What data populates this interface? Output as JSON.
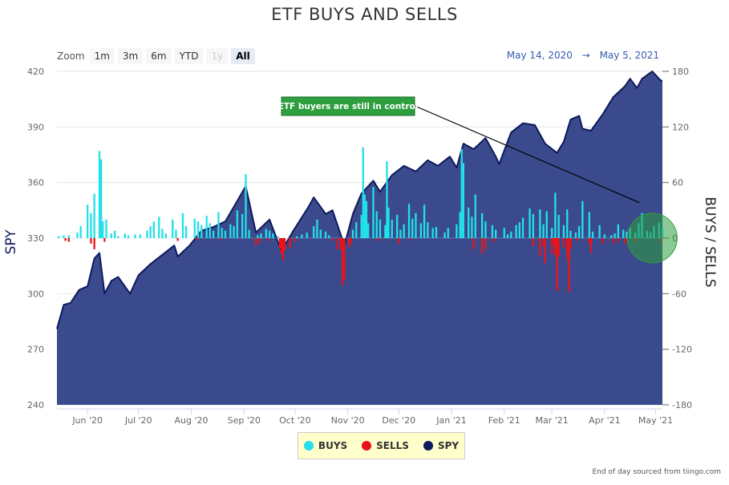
{
  "page_title": "ETF BUYS AND SELLS",
  "range_selector": {
    "label": "Zoom",
    "buttons": [
      "1m",
      "3m",
      "6m",
      "YTD",
      "1y",
      "All"
    ],
    "active": "All",
    "disabled": [
      "1y"
    ]
  },
  "date_range": {
    "from": "May 14, 2020",
    "arrow": "→",
    "to": "May 5, 2021"
  },
  "credit": "End of day sourced from tiingo.com",
  "colors": {
    "buys": "#22e0ea",
    "sells": "#e8141a",
    "spy_fill": "#3a4a8c",
    "spy_line": "#0e1a5c",
    "annotation": "#2e9e3e"
  },
  "legend": [
    {
      "label": "BUYS",
      "color": "#22e0ea"
    },
    {
      "label": "SELLS",
      "color": "#e8141a"
    },
    {
      "label": "SPY",
      "color": "#0e1a5c"
    }
  ],
  "annotation": {
    "text": "ETF buyers are still in control"
  },
  "chart_data": {
    "type": "area",
    "title": "ETF BUYS AND SELLS",
    "x_range": [
      "2020-05-14",
      "2021-05-05"
    ],
    "x_tick_labels": [
      {
        "date": "2020-06-01",
        "label": "Jun '20"
      },
      {
        "date": "2020-07-01",
        "label": "Jul '20"
      },
      {
        "date": "2020-08-01",
        "label": "Aug '20"
      },
      {
        "date": "2020-09-01",
        "label": "Sep '20"
      },
      {
        "date": "2020-10-01",
        "label": "Oct '20"
      },
      {
        "date": "2020-11-01",
        "label": "Nov '20"
      },
      {
        "date": "2020-12-01",
        "label": "Dec '20"
      },
      {
        "date": "2021-01-01",
        "label": "Jan '21"
      },
      {
        "date": "2021-02-01",
        "label": "Feb '21"
      },
      {
        "date": "2021-03-01",
        "label": "Mar '21"
      },
      {
        "date": "2021-04-01",
        "label": "Apr '21"
      },
      {
        "date": "2021-05-01",
        "label": "May '21"
      }
    ],
    "y_left": {
      "label": "SPY",
      "range": [
        240,
        420
      ],
      "ticks": [
        240,
        270,
        300,
        330,
        360,
        390,
        420
      ]
    },
    "y_right": {
      "label": "BUYS / SELLS",
      "range": [
        -180,
        180
      ],
      "ticks": [
        -180,
        -120,
        -60,
        0,
        60,
        120,
        180
      ]
    },
    "grid": true,
    "legend_position": "bottom-center",
    "series": [
      {
        "name": "SPY",
        "axis": "left",
        "points": [
          [
            "2020-05-14",
            281
          ],
          [
            "2020-05-18",
            294
          ],
          [
            "2020-05-22",
            295
          ],
          [
            "2020-05-27",
            302
          ],
          [
            "2020-06-01",
            304
          ],
          [
            "2020-06-05",
            319
          ],
          [
            "2020-06-08",
            322
          ],
          [
            "2020-06-11",
            300
          ],
          [
            "2020-06-15",
            307
          ],
          [
            "2020-06-19",
            309
          ],
          [
            "2020-06-26",
            300
          ],
          [
            "2020-07-01",
            310
          ],
          [
            "2020-07-08",
            316
          ],
          [
            "2020-07-15",
            321
          ],
          [
            "2020-07-22",
            326
          ],
          [
            "2020-07-24",
            320
          ],
          [
            "2020-07-31",
            326
          ],
          [
            "2020-08-07",
            334
          ],
          [
            "2020-08-14",
            336
          ],
          [
            "2020-08-21",
            339
          ],
          [
            "2020-08-28",
            350
          ],
          [
            "2020-09-02",
            358
          ],
          [
            "2020-09-08",
            333
          ],
          [
            "2020-09-16",
            340
          ],
          [
            "2020-09-23",
            323
          ],
          [
            "2020-09-30",
            334
          ],
          [
            "2020-10-09",
            347
          ],
          [
            "2020-10-12",
            352
          ],
          [
            "2020-10-19",
            343
          ],
          [
            "2020-10-23",
            345
          ],
          [
            "2020-10-30",
            326
          ],
          [
            "2020-11-04",
            343
          ],
          [
            "2020-11-09",
            354
          ],
          [
            "2020-11-16",
            361
          ],
          [
            "2020-11-20",
            355
          ],
          [
            "2020-11-27",
            364
          ],
          [
            "2020-12-04",
            369
          ],
          [
            "2020-12-11",
            366
          ],
          [
            "2020-12-18",
            372
          ],
          [
            "2020-12-24",
            369
          ],
          [
            "2020-12-31",
            374
          ],
          [
            "2021-01-04",
            368
          ],
          [
            "2021-01-08",
            381
          ],
          [
            "2021-01-14",
            378
          ],
          [
            "2021-01-21",
            384
          ],
          [
            "2021-01-27",
            374
          ],
          [
            "2021-01-29",
            370
          ],
          [
            "2021-02-05",
            387
          ],
          [
            "2021-02-12",
            392
          ],
          [
            "2021-02-19",
            391
          ],
          [
            "2021-02-25",
            381
          ],
          [
            "2021-03-04",
            376
          ],
          [
            "2021-03-08",
            382
          ],
          [
            "2021-03-12",
            394
          ],
          [
            "2021-03-17",
            396
          ],
          [
            "2021-03-19",
            389
          ],
          [
            "2021-03-24",
            388
          ],
          [
            "2021-03-31",
            397
          ],
          [
            "2021-04-06",
            406
          ],
          [
            "2021-04-13",
            412
          ],
          [
            "2021-04-16",
            416
          ],
          [
            "2021-04-20",
            411
          ],
          [
            "2021-04-23",
            416
          ],
          [
            "2021-04-29",
            420
          ],
          [
            "2021-05-04",
            415
          ],
          [
            "2021-05-05",
            415
          ]
        ]
      },
      {
        "name": "BUYS",
        "axis": "right",
        "points": [
          [
            "2020-05-15",
            2
          ],
          [
            "2020-05-18",
            3
          ],
          [
            "2020-05-21",
            3
          ],
          [
            "2020-05-26",
            6
          ],
          [
            "2020-05-28",
            13
          ],
          [
            "2020-06-01",
            36
          ],
          [
            "2020-06-03",
            27
          ],
          [
            "2020-06-05",
            48
          ],
          [
            "2020-06-08",
            94
          ],
          [
            "2020-06-09",
            85
          ],
          [
            "2020-06-10",
            18
          ],
          [
            "2020-06-12",
            20
          ],
          [
            "2020-06-15",
            5
          ],
          [
            "2020-06-17",
            8
          ],
          [
            "2020-06-19",
            2
          ],
          [
            "2020-06-23",
            5
          ],
          [
            "2020-06-25",
            3
          ],
          [
            "2020-06-29",
            4
          ],
          [
            "2020-07-02",
            4
          ],
          [
            "2020-07-06",
            8
          ],
          [
            "2020-07-08",
            13
          ],
          [
            "2020-07-10",
            18
          ],
          [
            "2020-07-13",
            23
          ],
          [
            "2020-07-15",
            10
          ],
          [
            "2020-07-17",
            5
          ],
          [
            "2020-07-21",
            20
          ],
          [
            "2020-07-23",
            9
          ],
          [
            "2020-07-27",
            27
          ],
          [
            "2020-07-29",
            13
          ],
          [
            "2020-08-03",
            21
          ],
          [
            "2020-08-05",
            18
          ],
          [
            "2020-08-07",
            14
          ],
          [
            "2020-08-10",
            24
          ],
          [
            "2020-08-12",
            16
          ],
          [
            "2020-08-14",
            8
          ],
          [
            "2020-08-17",
            28
          ],
          [
            "2020-08-19",
            11
          ],
          [
            "2020-08-21",
            8
          ],
          [
            "2020-08-24",
            15
          ],
          [
            "2020-08-26",
            13
          ],
          [
            "2020-08-28",
            30
          ],
          [
            "2020-08-31",
            26
          ],
          [
            "2020-09-02",
            69
          ],
          [
            "2020-09-04",
            9
          ],
          [
            "2020-09-09",
            3
          ],
          [
            "2020-09-11",
            5
          ],
          [
            "2020-09-14",
            10
          ],
          [
            "2020-09-16",
            8
          ],
          [
            "2020-09-18",
            5
          ],
          [
            "2020-09-21",
            2
          ],
          [
            "2020-10-02",
            2
          ],
          [
            "2020-10-05",
            4
          ],
          [
            "2020-10-08",
            6
          ],
          [
            "2020-10-12",
            13
          ],
          [
            "2020-10-14",
            20
          ],
          [
            "2020-10-16",
            9
          ],
          [
            "2020-10-19",
            7
          ],
          [
            "2020-10-21",
            3
          ],
          [
            "2020-11-04",
            9
          ],
          [
            "2020-11-06",
            17
          ],
          [
            "2020-11-09",
            25
          ],
          [
            "2020-11-10",
            98
          ],
          [
            "2020-11-11",
            47
          ],
          [
            "2020-11-12",
            40
          ],
          [
            "2020-11-13",
            16
          ],
          [
            "2020-11-16",
            55
          ],
          [
            "2020-11-18",
            29
          ],
          [
            "2020-11-20",
            20
          ],
          [
            "2020-11-23",
            14
          ],
          [
            "2020-11-24",
            83
          ],
          [
            "2020-11-25",
            33
          ],
          [
            "2020-11-27",
            20
          ],
          [
            "2020-11-30",
            25
          ],
          [
            "2020-12-02",
            9
          ],
          [
            "2020-12-04",
            15
          ],
          [
            "2020-12-07",
            37
          ],
          [
            "2020-12-09",
            21
          ],
          [
            "2020-12-11",
            27
          ],
          [
            "2020-12-14",
            16
          ],
          [
            "2020-12-16",
            36
          ],
          [
            "2020-12-18",
            17
          ],
          [
            "2020-12-21",
            11
          ],
          [
            "2020-12-23",
            12
          ],
          [
            "2020-12-28",
            6
          ],
          [
            "2020-12-30",
            11
          ],
          [
            "2021-01-04",
            15
          ],
          [
            "2021-01-06",
            28
          ],
          [
            "2021-01-07",
            96
          ],
          [
            "2021-01-08",
            81
          ],
          [
            "2021-01-11",
            33
          ],
          [
            "2021-01-13",
            23
          ],
          [
            "2021-01-15",
            47
          ],
          [
            "2021-01-19",
            27
          ],
          [
            "2021-01-21",
            18
          ],
          [
            "2021-01-25",
            14
          ],
          [
            "2021-01-27",
            9
          ],
          [
            "2021-02-01",
            11
          ],
          [
            "2021-02-03",
            4
          ],
          [
            "2021-02-05",
            7
          ],
          [
            "2021-02-08",
            14
          ],
          [
            "2021-02-10",
            17
          ],
          [
            "2021-02-12",
            22
          ],
          [
            "2021-02-16",
            32
          ],
          [
            "2021-02-18",
            26
          ],
          [
            "2021-02-22",
            31
          ],
          [
            "2021-02-24",
            15
          ],
          [
            "2021-02-26",
            29
          ],
          [
            "2021-03-01",
            11
          ],
          [
            "2021-03-03",
            49
          ],
          [
            "2021-03-05",
            25
          ],
          [
            "2021-03-08",
            14
          ],
          [
            "2021-03-10",
            31
          ],
          [
            "2021-03-12",
            8
          ],
          [
            "2021-03-15",
            6
          ],
          [
            "2021-03-17",
            13
          ],
          [
            "2021-03-19",
            40
          ],
          [
            "2021-03-23",
            28
          ],
          [
            "2021-03-25",
            7
          ],
          [
            "2021-03-29",
            14
          ],
          [
            "2021-04-01",
            4
          ],
          [
            "2021-04-05",
            3
          ],
          [
            "2021-04-07",
            5
          ],
          [
            "2021-04-09",
            15
          ],
          [
            "2021-04-12",
            9
          ],
          [
            "2021-04-14",
            7
          ],
          [
            "2021-04-16",
            11
          ],
          [
            "2021-04-19",
            6
          ],
          [
            "2021-04-21",
            16
          ],
          [
            "2021-04-23",
            27
          ],
          [
            "2021-04-26",
            8
          ],
          [
            "2021-04-28",
            6
          ],
          [
            "2021-04-30",
            13
          ],
          [
            "2021-05-03",
            17
          ],
          [
            "2021-05-05",
            11
          ]
        ]
      },
      {
        "name": "SELLS",
        "axis": "right",
        "points": [
          [
            "2020-05-19",
            -3
          ],
          [
            "2020-05-21",
            -4
          ],
          [
            "2020-06-03",
            -6
          ],
          [
            "2020-06-05",
            -12
          ],
          [
            "2020-06-11",
            -4
          ],
          [
            "2020-07-24",
            -3
          ],
          [
            "2020-08-04",
            -2
          ],
          [
            "2020-08-18",
            -2
          ],
          [
            "2020-09-08",
            -8
          ],
          [
            "2020-09-10",
            -6
          ],
          [
            "2020-09-15",
            -3
          ],
          [
            "2020-09-22",
            -11
          ],
          [
            "2020-09-23",
            -17
          ],
          [
            "2020-09-24",
            -24
          ],
          [
            "2020-09-25",
            -13
          ],
          [
            "2020-09-28",
            -11
          ],
          [
            "2020-10-01",
            -4
          ],
          [
            "2020-10-23",
            -3
          ],
          [
            "2020-10-26",
            -12
          ],
          [
            "2020-10-28",
            -13
          ],
          [
            "2020-10-29",
            -51
          ],
          [
            "2020-10-30",
            -45
          ],
          [
            "2020-11-02",
            -10
          ],
          [
            "2020-11-03",
            -6
          ],
          [
            "2020-11-19",
            -3
          ],
          [
            "2020-12-01",
            -6
          ],
          [
            "2020-12-08",
            -2
          ],
          [
            "2021-01-14",
            -12
          ],
          [
            "2021-01-19",
            -17
          ],
          [
            "2021-01-21",
            -12
          ],
          [
            "2021-01-26",
            -4
          ],
          [
            "2021-02-18",
            -9
          ],
          [
            "2021-02-22",
            -19
          ],
          [
            "2021-02-24",
            -9
          ],
          [
            "2021-02-25",
            -27
          ],
          [
            "2021-03-01",
            -17
          ],
          [
            "2021-03-02",
            -7
          ],
          [
            "2021-03-03",
            -18
          ],
          [
            "2021-03-04",
            -57
          ],
          [
            "2021-03-05",
            -20
          ],
          [
            "2021-03-08",
            -10
          ],
          [
            "2021-03-10",
            -23
          ],
          [
            "2021-03-11",
            -58
          ],
          [
            "2021-03-12",
            -12
          ],
          [
            "2021-03-16",
            -3
          ],
          [
            "2021-03-23",
            -6
          ],
          [
            "2021-03-24",
            -16
          ],
          [
            "2021-03-31",
            -6
          ],
          [
            "2021-04-06",
            -6
          ],
          [
            "2021-04-09",
            -4
          ],
          [
            "2021-04-13",
            -6
          ],
          [
            "2021-04-19",
            -4
          ],
          [
            "2021-05-04",
            -5
          ]
        ]
      }
    ],
    "annotations": [
      {
        "text": "ETF buyers are still in control",
        "points_to": [
          "2021-04-29",
          40
        ]
      },
      {
        "type": "highlight-circle",
        "center": [
          "2021-04-29",
          0
        ]
      }
    ]
  }
}
